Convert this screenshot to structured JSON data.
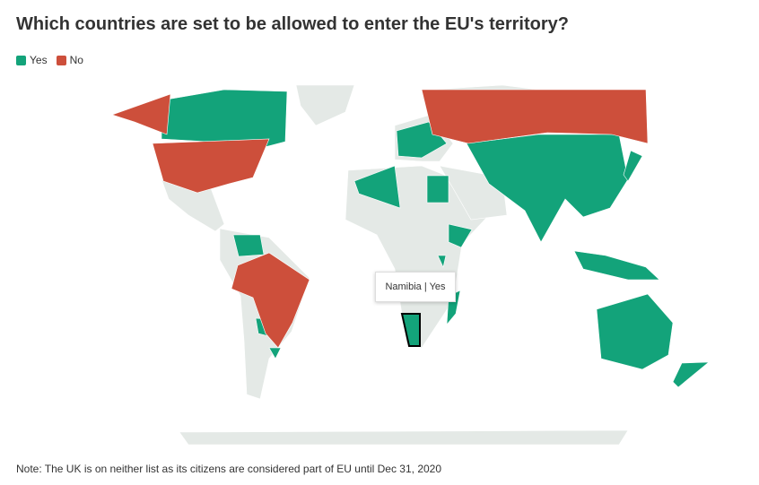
{
  "header": {
    "title": "Which countries are set to be allowed to enter the EU's territory?"
  },
  "legend": [
    {
      "label": "Yes",
      "color": "#13a37a"
    },
    {
      "label": "No",
      "color": "#cd4f3b"
    }
  ],
  "tooltip": {
    "text": "Namibia | Yes"
  },
  "note": "Note: The UK is on neither list as its citizens are considered part of EU until Dec 31, 2020"
}
